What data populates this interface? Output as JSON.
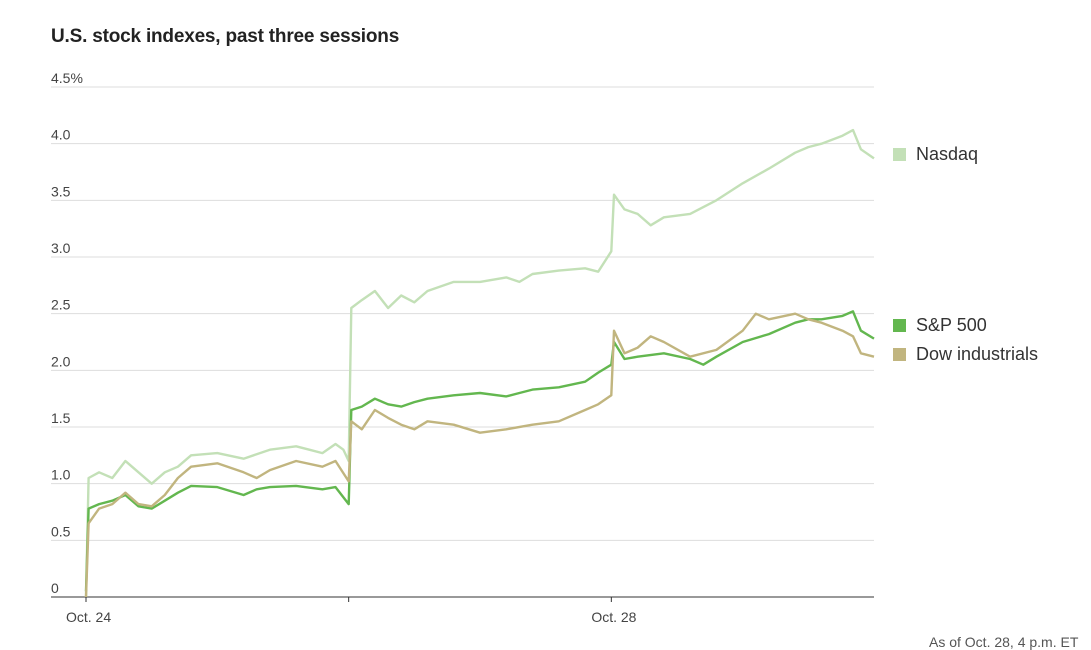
{
  "chart_data": {
    "type": "line",
    "title": "U.S. stock indexes, past three sessions",
    "xlabel": "",
    "ylabel": "",
    "ylim": [
      0,
      4.5
    ],
    "y_ticks": [
      "0",
      "0.5",
      "1.0",
      "1.5",
      "2.0",
      "2.5",
      "3.0",
      "3.5",
      "4.0",
      "4.5%"
    ],
    "x_tick_labels": [
      "Oct. 24",
      "Oct. 28"
    ],
    "x_domain": [
      0,
      3
    ],
    "session_boundaries": [
      0,
      1,
      2
    ],
    "grid": true,
    "legend_position": "right",
    "note": "As of Oct. 28, 4 p.m. ET",
    "series": [
      {
        "name": "Nasdaq",
        "color": "#c3e0b7",
        "points": [
          [
            0,
            0.0
          ],
          [
            0.01,
            1.05
          ],
          [
            0.05,
            1.1
          ],
          [
            0.1,
            1.05
          ],
          [
            0.15,
            1.2
          ],
          [
            0.2,
            1.1
          ],
          [
            0.25,
            1.0
          ],
          [
            0.3,
            1.1
          ],
          [
            0.35,
            1.15
          ],
          [
            0.4,
            1.25
          ],
          [
            0.5,
            1.27
          ],
          [
            0.6,
            1.22
          ],
          [
            0.7,
            1.3
          ],
          [
            0.8,
            1.33
          ],
          [
            0.85,
            1.3
          ],
          [
            0.9,
            1.27
          ],
          [
            0.95,
            1.35
          ],
          [
            0.98,
            1.3
          ],
          [
            1.0,
            1.2
          ],
          [
            1.01,
            2.55
          ],
          [
            1.05,
            2.62
          ],
          [
            1.1,
            2.7
          ],
          [
            1.15,
            2.55
          ],
          [
            1.2,
            2.66
          ],
          [
            1.25,
            2.6
          ],
          [
            1.3,
            2.7
          ],
          [
            1.4,
            2.78
          ],
          [
            1.5,
            2.78
          ],
          [
            1.6,
            2.82
          ],
          [
            1.65,
            2.78
          ],
          [
            1.7,
            2.85
          ],
          [
            1.8,
            2.88
          ],
          [
            1.9,
            2.9
          ],
          [
            1.95,
            2.87
          ],
          [
            2.0,
            3.05
          ],
          [
            2.01,
            3.55
          ],
          [
            2.05,
            3.42
          ],
          [
            2.1,
            3.38
          ],
          [
            2.15,
            3.28
          ],
          [
            2.2,
            3.35
          ],
          [
            2.3,
            3.38
          ],
          [
            2.4,
            3.5
          ],
          [
            2.5,
            3.65
          ],
          [
            2.6,
            3.78
          ],
          [
            2.7,
            3.92
          ],
          [
            2.75,
            3.97
          ],
          [
            2.8,
            4.0
          ],
          [
            2.88,
            4.07
          ],
          [
            2.92,
            4.12
          ],
          [
            2.95,
            3.95
          ],
          [
            3.0,
            3.87
          ]
        ]
      },
      {
        "name": "S&P 500",
        "color": "#63b74f",
        "points": [
          [
            0,
            0.05
          ],
          [
            0.01,
            0.78
          ],
          [
            0.05,
            0.82
          ],
          [
            0.1,
            0.85
          ],
          [
            0.15,
            0.9
          ],
          [
            0.2,
            0.8
          ],
          [
            0.25,
            0.78
          ],
          [
            0.3,
            0.85
          ],
          [
            0.35,
            0.92
          ],
          [
            0.4,
            0.98
          ],
          [
            0.5,
            0.97
          ],
          [
            0.6,
            0.9
          ],
          [
            0.65,
            0.95
          ],
          [
            0.7,
            0.97
          ],
          [
            0.8,
            0.98
          ],
          [
            0.9,
            0.95
          ],
          [
            0.95,
            0.97
          ],
          [
            1.0,
            0.82
          ],
          [
            1.01,
            1.65
          ],
          [
            1.05,
            1.68
          ],
          [
            1.1,
            1.75
          ],
          [
            1.15,
            1.7
          ],
          [
            1.2,
            1.68
          ],
          [
            1.25,
            1.72
          ],
          [
            1.3,
            1.75
          ],
          [
            1.4,
            1.78
          ],
          [
            1.5,
            1.8
          ],
          [
            1.6,
            1.77
          ],
          [
            1.65,
            1.8
          ],
          [
            1.7,
            1.83
          ],
          [
            1.8,
            1.85
          ],
          [
            1.9,
            1.9
          ],
          [
            1.95,
            1.98
          ],
          [
            2.0,
            2.05
          ],
          [
            2.01,
            2.25
          ],
          [
            2.05,
            2.1
          ],
          [
            2.1,
            2.12
          ],
          [
            2.2,
            2.15
          ],
          [
            2.3,
            2.1
          ],
          [
            2.35,
            2.05
          ],
          [
            2.4,
            2.12
          ],
          [
            2.5,
            2.25
          ],
          [
            2.6,
            2.32
          ],
          [
            2.7,
            2.42
          ],
          [
            2.75,
            2.45
          ],
          [
            2.8,
            2.45
          ],
          [
            2.88,
            2.48
          ],
          [
            2.92,
            2.52
          ],
          [
            2.95,
            2.35
          ],
          [
            3.0,
            2.28
          ]
        ]
      },
      {
        "name": "Dow industrials",
        "color": "#c1b57f",
        "points": [
          [
            0,
            0.0
          ],
          [
            0.01,
            0.65
          ],
          [
            0.05,
            0.78
          ],
          [
            0.1,
            0.82
          ],
          [
            0.15,
            0.92
          ],
          [
            0.2,
            0.82
          ],
          [
            0.25,
            0.8
          ],
          [
            0.3,
            0.9
          ],
          [
            0.35,
            1.05
          ],
          [
            0.4,
            1.15
          ],
          [
            0.5,
            1.18
          ],
          [
            0.6,
            1.1
          ],
          [
            0.65,
            1.05
          ],
          [
            0.7,
            1.12
          ],
          [
            0.8,
            1.2
          ],
          [
            0.9,
            1.15
          ],
          [
            0.95,
            1.2
          ],
          [
            1.0,
            1.02
          ],
          [
            1.01,
            1.55
          ],
          [
            1.05,
            1.48
          ],
          [
            1.1,
            1.65
          ],
          [
            1.15,
            1.58
          ],
          [
            1.2,
            1.52
          ],
          [
            1.25,
            1.48
          ],
          [
            1.3,
            1.55
          ],
          [
            1.4,
            1.52
          ],
          [
            1.5,
            1.45
          ],
          [
            1.6,
            1.48
          ],
          [
            1.7,
            1.52
          ],
          [
            1.8,
            1.55
          ],
          [
            1.9,
            1.65
          ],
          [
            1.95,
            1.7
          ],
          [
            2.0,
            1.78
          ],
          [
            2.01,
            2.35
          ],
          [
            2.05,
            2.15
          ],
          [
            2.1,
            2.2
          ],
          [
            2.15,
            2.3
          ],
          [
            2.2,
            2.25
          ],
          [
            2.3,
            2.12
          ],
          [
            2.4,
            2.18
          ],
          [
            2.5,
            2.35
          ],
          [
            2.55,
            2.5
          ],
          [
            2.6,
            2.45
          ],
          [
            2.7,
            2.5
          ],
          [
            2.75,
            2.45
          ],
          [
            2.8,
            2.42
          ],
          [
            2.88,
            2.35
          ],
          [
            2.92,
            2.3
          ],
          [
            2.95,
            2.15
          ],
          [
            3.0,
            2.12
          ]
        ]
      }
    ]
  }
}
